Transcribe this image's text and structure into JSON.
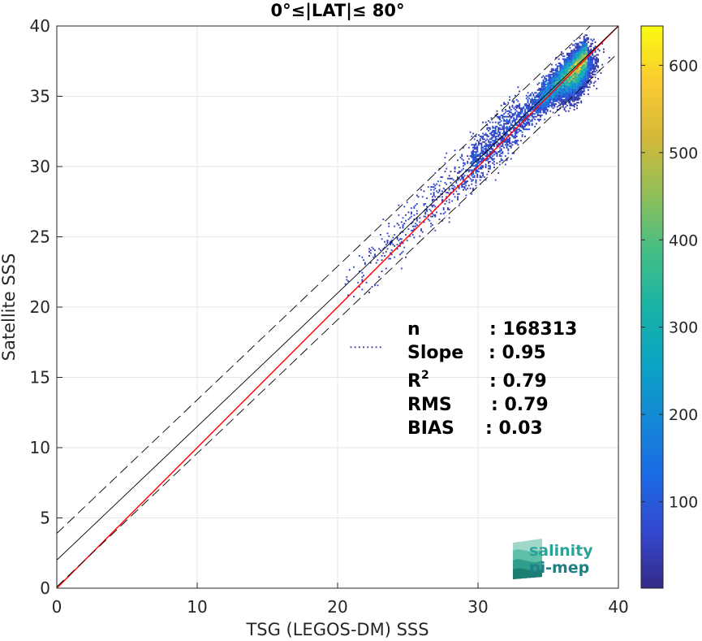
{
  "chart_data": {
    "type": "heatmap",
    "title": "0°≤|LAT|≤ 80°",
    "xlabel": "TSG (LEGOS-DM) SSS",
    "ylabel": "Satellite SSS",
    "xlim": [
      0,
      40
    ],
    "ylim": [
      0,
      40
    ],
    "xticks": [
      "0",
      "10",
      "20",
      "30",
      "40"
    ],
    "yticks": [
      "0",
      "5",
      "10",
      "15",
      "20",
      "25",
      "30",
      "35",
      "40"
    ],
    "grid": true,
    "colorbar": {
      "colormap": "parula",
      "range": [
        1,
        645
      ],
      "ticks": [
        "100",
        "200",
        "300",
        "400",
        "500",
        "600"
      ]
    },
    "lines": [
      {
        "name": "1:1",
        "color": "#ff0000",
        "style": "solid",
        "intercept": 0,
        "slope": 1
      },
      {
        "name": "fit",
        "color": "#000000",
        "style": "solid",
        "intercept": 2.0,
        "slope": 0.95
      },
      {
        "name": "fit+2RMS",
        "color": "#000000",
        "style": "dashed",
        "intercept": 3.9,
        "slope": 0.95
      },
      {
        "name": "fit-2RMS",
        "color": "#000000",
        "style": "dashed",
        "intercept": 0.1,
        "slope": 0.95
      }
    ],
    "density_peak": {
      "x": 37.0,
      "y": 36.5,
      "count": 645
    },
    "stats": [
      {
        "label": "n",
        "value": ": 168313"
      },
      {
        "label": "Slope",
        "value": ": 0.95"
      },
      {
        "label": "R",
        "sup": "2",
        "value": ": 0.79"
      },
      {
        "label": "RMS",
        "value": ": 0.79"
      },
      {
        "label": "BIAS",
        "value": ": 0.03"
      }
    ]
  },
  "logo": {
    "line1": "salinity",
    "line2": "pi-mep"
  }
}
